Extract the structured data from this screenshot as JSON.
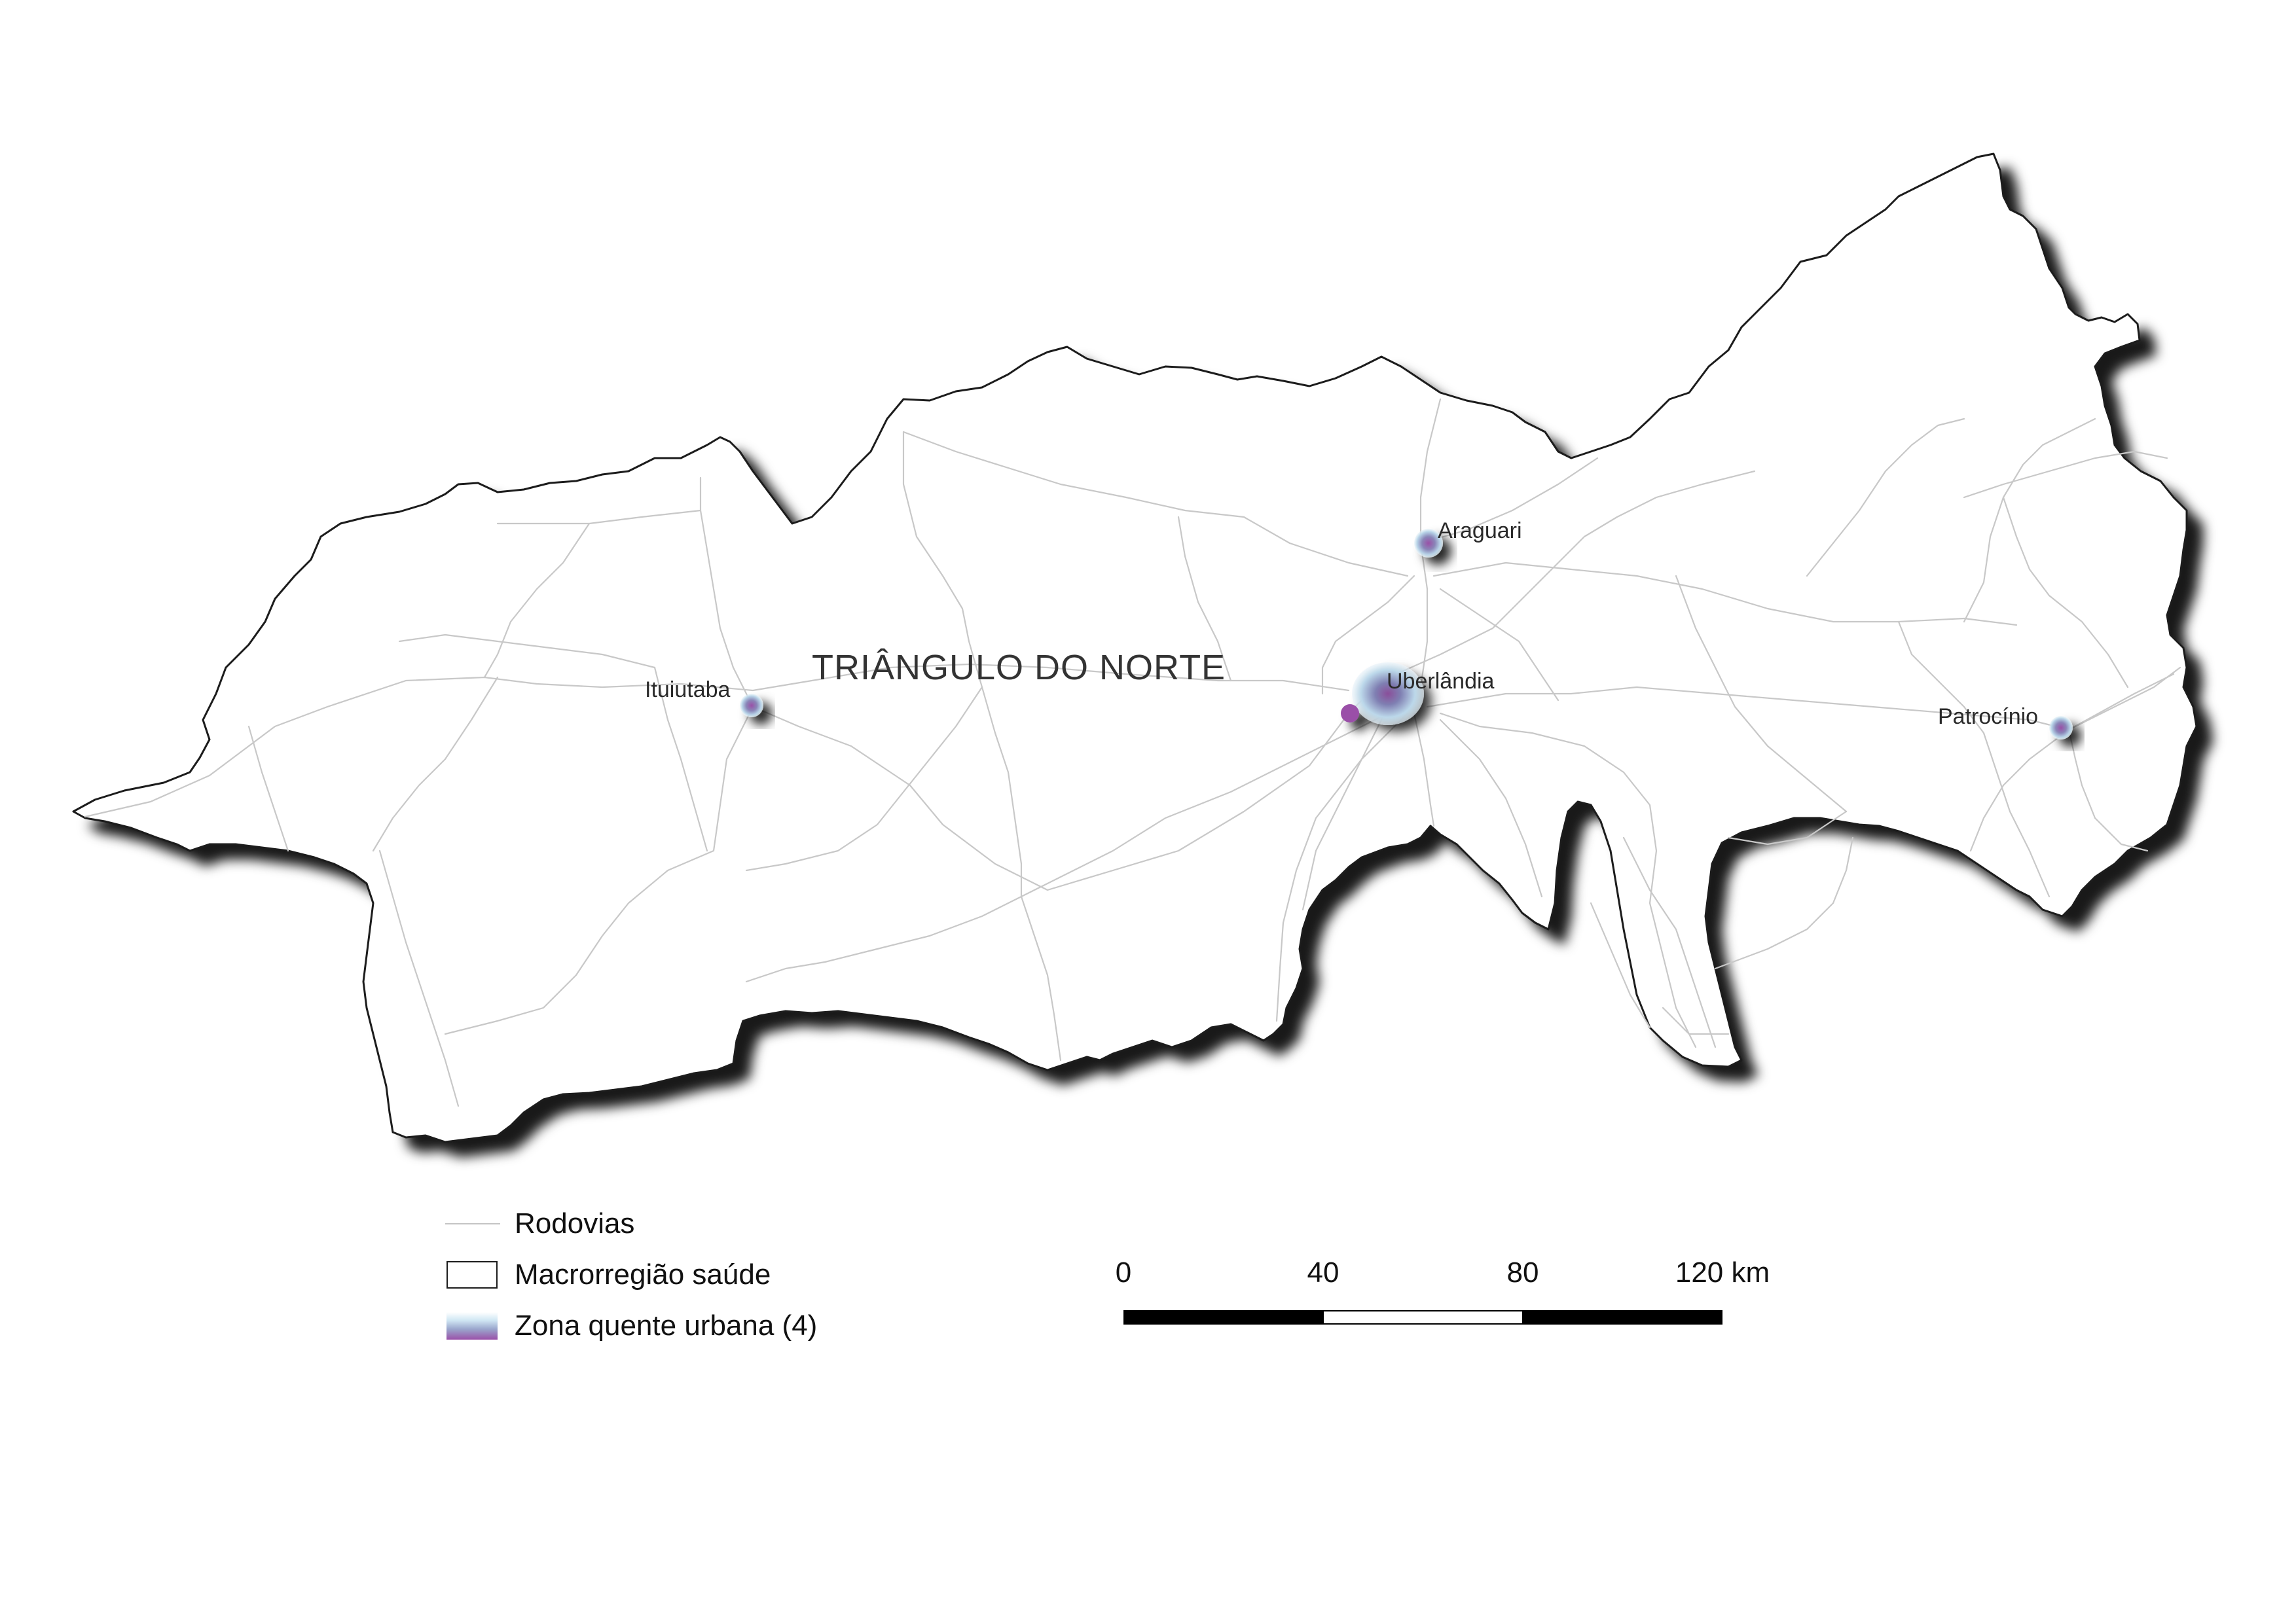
{
  "map": {
    "region_name": "TRIÂNGULO DO NORTE",
    "cities": [
      {
        "name": "Araguari",
        "hotspot": "small"
      },
      {
        "name": "Uberlândia",
        "hotspot": "large"
      },
      {
        "name": "Ituiutaba",
        "hotspot": "small"
      },
      {
        "name": "Patrocínio",
        "hotspot": "small"
      }
    ]
  },
  "legend": {
    "roads_label": "Rodovias",
    "region_label": "Macrorregião saúde",
    "hotspot_label": "Zona quente urbana (4)"
  },
  "scale": {
    "ticks": [
      "0",
      "40",
      "80",
      "120 km"
    ],
    "segments": [
      "dark",
      "light",
      "dark"
    ]
  },
  "colors": {
    "road": "#c8c8c8",
    "border": "#1a1a1a",
    "hotspot_high": "#9a50a8",
    "hotspot_low": "#cfe6f3"
  }
}
